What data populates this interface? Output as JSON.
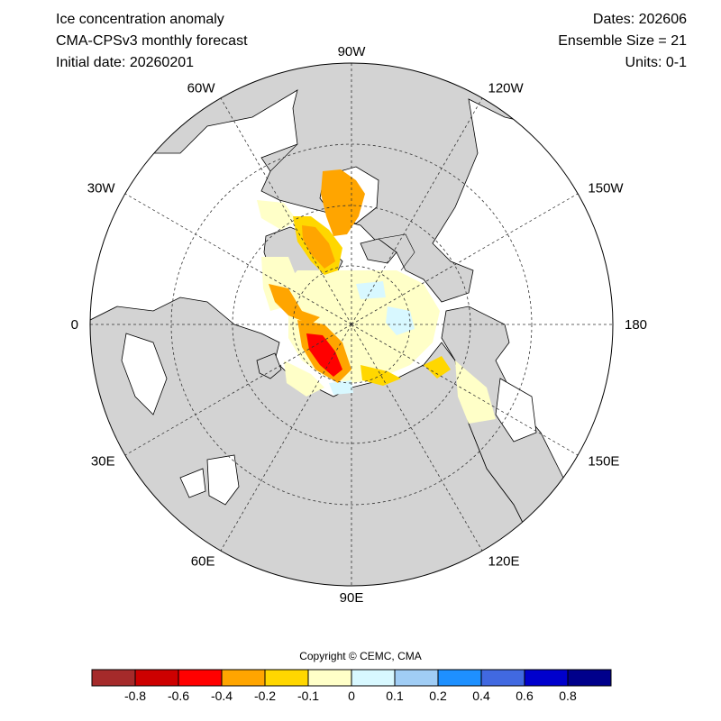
{
  "header": {
    "title": "Ice concentration anomaly",
    "model": "CMA-CPSv3 monthly forecast",
    "initial_date": "Initial date: 20260201",
    "dates": "Dates: 202606",
    "ensemble": "Ensemble Size = 21",
    "units": "Units: 0-1"
  },
  "map": {
    "projection": "north-polar-stereographic",
    "land_color": "#d3d3d3",
    "ocean_color": "#ffffff",
    "longitude_labels": [
      "90W",
      "120W",
      "150W",
      "180",
      "150E",
      "120E",
      "90E",
      "60E",
      "30E",
      "0",
      "30W",
      "60W"
    ]
  },
  "copyright": "Copyright © CEMC, CMA",
  "colorbar": {
    "colors": [
      "#a52a2a",
      "#cd0000",
      "#ff0000",
      "#ffa500",
      "#ffd700",
      "#ffffc8",
      "#d8f8ff",
      "#a0cdf5",
      "#1e90ff",
      "#4169e1",
      "#0000cd",
      "#00008b"
    ],
    "labels": [
      "-0.8",
      "-0.6",
      "-0.4",
      "-0.2",
      "-0.1",
      "0",
      "0.1",
      "0.2",
      "0.4",
      "0.6",
      "0.8"
    ]
  }
}
